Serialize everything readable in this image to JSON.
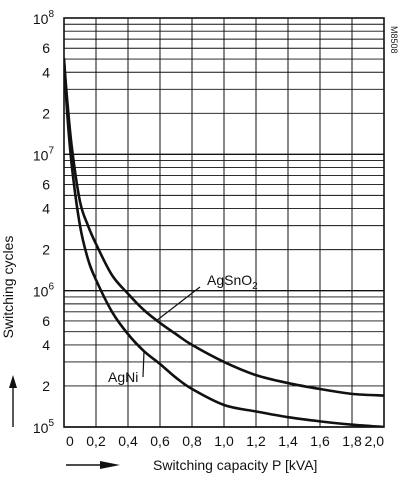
{
  "chart_data": {
    "type": "line",
    "title": "",
    "xlabel": "Switching capacity P [kVA]",
    "ylabel": "Switching cycles",
    "x_scale": "linear",
    "y_scale": "log",
    "xlim": [
      0,
      2.0
    ],
    "ylim": [
      100000,
      100000000
    ],
    "grid": true,
    "x_ticks": [
      {
        "value": 0,
        "label": "0"
      },
      {
        "value": 0.2,
        "label": "0,2"
      },
      {
        "value": 0.4,
        "label": "0,4"
      },
      {
        "value": 0.6,
        "label": "0,6"
      },
      {
        "value": 0.8,
        "label": "0,8"
      },
      {
        "value": 1.0,
        "label": "1,0"
      },
      {
        "value": 1.2,
        "label": "1,2"
      },
      {
        "value": 1.4,
        "label": "1,4"
      },
      {
        "value": 1.6,
        "label": "1,6"
      },
      {
        "value": 1.8,
        "label": "1,8"
      },
      {
        "value": 2.0,
        "label": "2,0"
      }
    ],
    "y_ticks": [
      {
        "value": 100000,
        "base": "10",
        "exp": "5"
      },
      {
        "value": 200000,
        "label": "2"
      },
      {
        "value": 400000,
        "label": "4"
      },
      {
        "value": 600000,
        "label": "6"
      },
      {
        "value": 1000000,
        "base": "10",
        "exp": "6"
      },
      {
        "value": 2000000,
        "label": "2"
      },
      {
        "value": 4000000,
        "label": "4"
      },
      {
        "value": 6000000,
        "label": "6"
      },
      {
        "value": 10000000,
        "base": "10",
        "exp": "7"
      },
      {
        "value": 20000000,
        "label": "2"
      },
      {
        "value": 40000000,
        "label": "4"
      },
      {
        "value": 60000000,
        "label": "6"
      },
      {
        "value": 100000000,
        "base": "10",
        "exp": "8"
      }
    ],
    "series": [
      {
        "name": "AgSnO2",
        "label_base": "AgSnO",
        "label_sub": "2",
        "color": "#111111",
        "x": [
          0,
          0.02,
          0.05,
          0.1,
          0.15,
          0.2,
          0.3,
          0.4,
          0.5,
          0.6,
          0.7,
          0.8,
          1.0,
          1.2,
          1.4,
          1.6,
          1.8,
          2.0
        ],
        "y": [
          50000000,
          25000000,
          11000000,
          4500000,
          3000000,
          2200000,
          1300000,
          950000,
          720000,
          580000,
          480000,
          400000,
          300000,
          240000,
          210000,
          190000,
          175000,
          170000
        ]
      },
      {
        "name": "AgNi",
        "label_base": "AgNi",
        "label_sub": "",
        "color": "#111111",
        "x": [
          0,
          0.02,
          0.05,
          0.1,
          0.15,
          0.2,
          0.3,
          0.4,
          0.5,
          0.6,
          0.7,
          0.8,
          1.0,
          1.2,
          1.4,
          1.6,
          1.8,
          2.0
        ],
        "y": [
          50000000,
          20000000,
          8000000,
          3000000,
          1700000,
          1200000,
          700000,
          480000,
          360000,
          290000,
          230000,
          190000,
          145000,
          130000,
          118000,
          110000,
          104000,
          100000
        ]
      }
    ],
    "annotations": [
      {
        "text": "M8508",
        "position": "top-right",
        "orientation": "vertical"
      }
    ]
  }
}
